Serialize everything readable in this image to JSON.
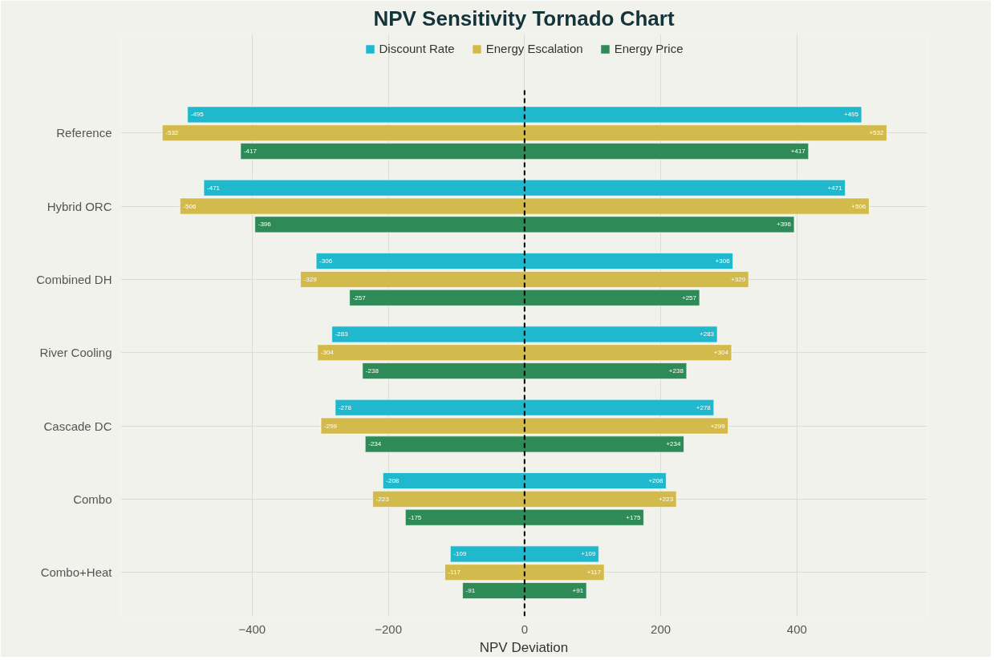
{
  "chart_data": {
    "type": "bar",
    "orientation": "horizontal",
    "title": "NPV Sensitivity Tornado Chart",
    "xlabel": "NPV Deviation",
    "categories": [
      "Reference",
      "Hybrid ORC",
      "Combined DH",
      "River Cooling",
      "Cascade DC",
      "Combo",
      "Combo+Heat"
    ],
    "series": [
      {
        "name": "Discount Rate",
        "color": "#1fb8cd",
        "base": [
          -495,
          -471,
          -306,
          -283,
          -278,
          -208,
          -109
        ],
        "values": [
          990,
          942,
          612,
          566,
          556,
          416,
          218
        ]
      },
      {
        "name": "Energy Escalation",
        "color": "#d2ba4c",
        "base": [
          -532,
          -506,
          -329,
          -304,
          -299,
          -223,
          -117
        ],
        "values": [
          1064,
          1012,
          658,
          608,
          598,
          446,
          234
        ]
      },
      {
        "name": "Energy Price",
        "color": "#2e8b57",
        "base": [
          -417,
          -396,
          -257,
          -238,
          -234,
          -175,
          -91
        ],
        "values": [
          834,
          792,
          514,
          476,
          468,
          350,
          182
        ]
      }
    ],
    "xlim": [
      -593,
      591
    ],
    "xticks": [
      -400,
      -200,
      0,
      200,
      400
    ],
    "grid": true,
    "legend": "top",
    "ref_lines": [
      {
        "axis": "x",
        "value": 0,
        "color": "#000000",
        "line_style": "dashed"
      }
    ],
    "annotations": [
      "-495",
      "+495",
      "-471",
      "+471",
      "-306",
      "+306",
      "-283",
      "+283",
      "-278",
      "+278",
      "-208",
      "+208",
      "-109",
      "+109",
      "-532",
      "+532",
      "-506",
      "+506",
      "-329",
      "+329",
      "-304",
      "+304",
      "-299",
      "+299",
      "-223",
      "+223",
      "-117",
      "+117",
      "-417",
      "+417",
      "-396",
      "+396",
      "-257",
      "+257",
      "-238",
      "+238",
      "-234",
      "+234",
      "-175",
      "+175",
      "-91",
      "+91"
    ]
  }
}
